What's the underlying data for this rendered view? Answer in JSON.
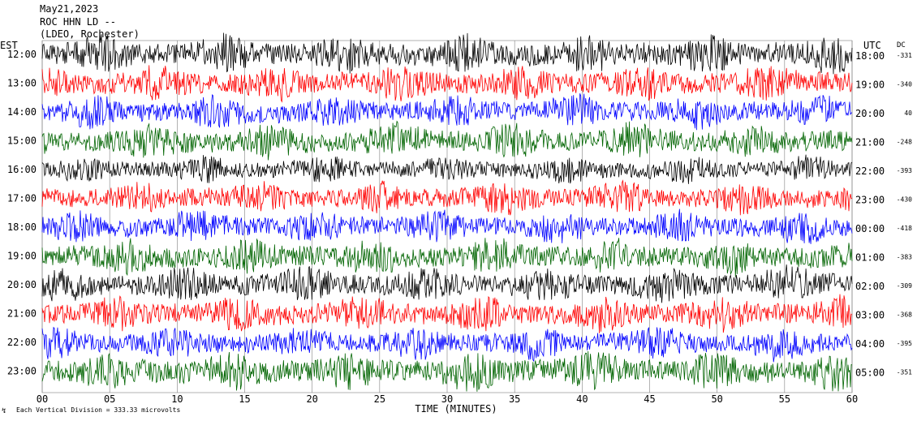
{
  "header": {
    "date": "May21,2023",
    "station": "ROC HHN LD --",
    "location": "(LDEO, Rochester)"
  },
  "axes": {
    "left_title": "EST",
    "right_title": "UTC",
    "dc_title": "DC",
    "xlabel": "TIME (MINUTES)",
    "x_ticks": [
      "00",
      "05",
      "10",
      "15",
      "20",
      "25",
      "30",
      "35",
      "40",
      "45",
      "50",
      "55",
      "60"
    ]
  },
  "footer": {
    "scale_note": "Each Vertical Division =  333.33 microvolts"
  },
  "colors": {
    "trace_cycle": [
      "#000000",
      "#ff0000",
      "#0000ff",
      "#006400"
    ],
    "grid": "#808080",
    "background": "#ffffff"
  },
  "chart_data": {
    "type": "line",
    "title": "",
    "xlabel": "TIME (MINUTES)",
    "ylabel": "",
    "xlim": [
      0,
      60
    ],
    "grid": true,
    "rows": [
      {
        "est": "12:00",
        "utc": "18:00",
        "dc": "-331",
        "color": "#000000",
        "amplitude": 13
      },
      {
        "est": "13:00",
        "utc": "19:00",
        "dc": "-340",
        "color": "#ff0000",
        "amplitude": 12
      },
      {
        "est": "14:00",
        "utc": "20:00",
        "dc": "40",
        "color": "#0000ff",
        "amplitude": 11
      },
      {
        "est": "15:00",
        "utc": "21:00",
        "dc": "-248",
        "color": "#006400",
        "amplitude": 12
      },
      {
        "est": "16:00",
        "utc": "22:00",
        "dc": "-393",
        "color": "#000000",
        "amplitude": 9
      },
      {
        "est": "17:00",
        "utc": "23:00",
        "dc": "-430",
        "color": "#ff0000",
        "amplitude": 11
      },
      {
        "est": "18:00",
        "utc": "00:00",
        "dc": "-418",
        "color": "#0000ff",
        "amplitude": 11
      },
      {
        "est": "19:00",
        "utc": "01:00",
        "dc": "-383",
        "color": "#006400",
        "amplitude": 12
      },
      {
        "est": "20:00",
        "utc": "02:00",
        "dc": "-309",
        "color": "#000000",
        "amplitude": 12
      },
      {
        "est": "21:00",
        "utc": "03:00",
        "dc": "-368",
        "color": "#ff0000",
        "amplitude": 12
      },
      {
        "est": "22:00",
        "utc": "04:00",
        "dc": "-395",
        "color": "#0000ff",
        "amplitude": 11
      },
      {
        "est": "23:00",
        "utc": "05:00",
        "dc": "-351",
        "color": "#006400",
        "amplitude": 13
      }
    ]
  }
}
